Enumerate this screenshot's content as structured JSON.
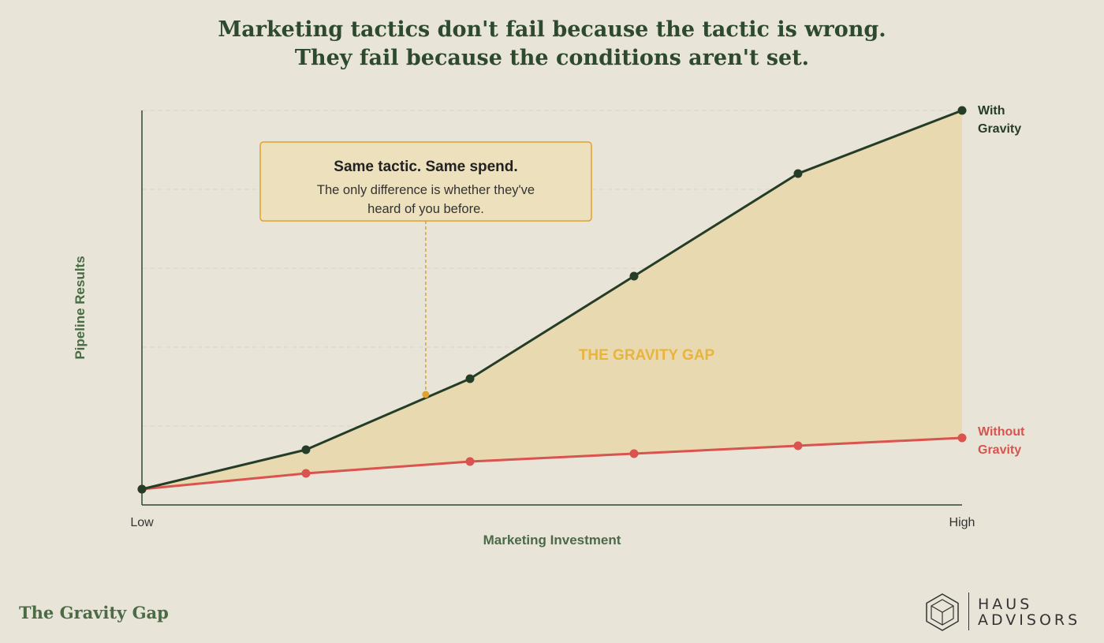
{
  "header": {
    "title_line1": "Marketing tactics don't fail because the tactic is wrong.",
    "title_line2": "They fail because the conditions aren't set."
  },
  "chart_data": {
    "type": "line",
    "title": "Marketing tactics don't fail because the tactic is wrong. They fail because the conditions aren't set.",
    "xlabel": "Marketing Investment",
    "ylabel": "Pipeline Results",
    "x_tick_labels": [
      "Low",
      "High"
    ],
    "x": [
      0,
      1,
      2,
      3,
      4,
      5
    ],
    "ylim": [
      0,
      100
    ],
    "grid": true,
    "series": [
      {
        "name": "With Gravity",
        "values": [
          4,
          14,
          32,
          58,
          84,
          100
        ],
        "color": "#253d26"
      },
      {
        "name": "Without Gravity",
        "values": [
          4,
          8,
          11,
          13,
          15,
          17
        ],
        "color": "#d9534f"
      }
    ],
    "fill_between": {
      "label": "THE GRAVITY GAP",
      "color": "#e8d9b0",
      "label_color": "#e8b43c"
    },
    "annotation": {
      "heading": "Same tactic. Same spend.",
      "line1": "The only difference is whether they've",
      "line2": "heard of you before.",
      "point_x": 1.73,
      "point_y": 28,
      "color": "#e0a22c"
    }
  },
  "footer": {
    "title": "The Gravity Gap",
    "logo_line1": "HAUS",
    "logo_line2": "ADVISORS"
  }
}
